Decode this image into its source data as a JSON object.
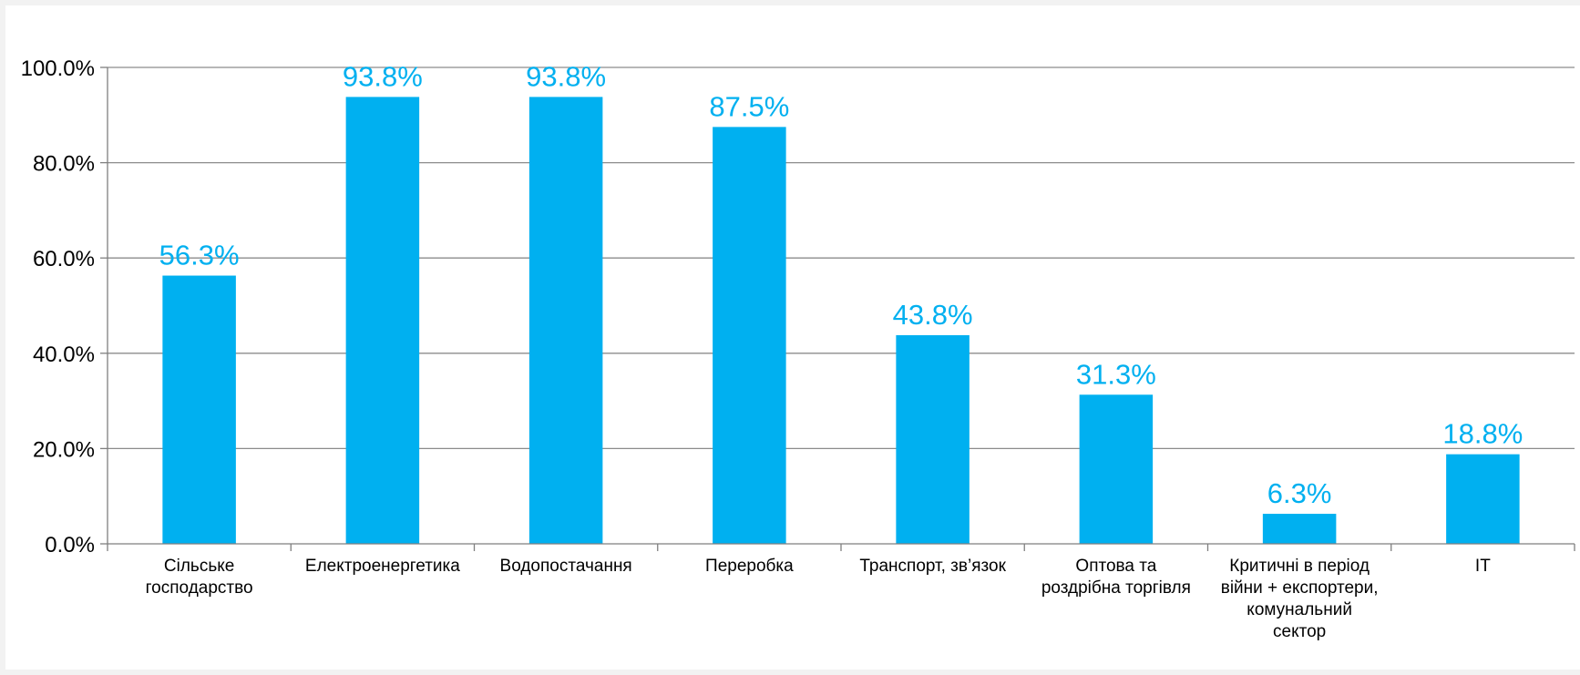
{
  "chart_data": {
    "type": "bar",
    "categories": [
      [
        "Сільське",
        "господарство"
      ],
      [
        "Електроенергетика"
      ],
      [
        "Водопостачання"
      ],
      [
        "Переробка"
      ],
      [
        "Транспорт, зв’язок"
      ],
      [
        "Оптова та",
        "роздрібна торгівля"
      ],
      [
        "Критичні в період",
        "війни + експортери,",
        "комунальний",
        "сектор"
      ],
      [
        "IT"
      ]
    ],
    "values": [
      56.3,
      93.8,
      93.8,
      87.5,
      43.8,
      31.3,
      6.3,
      18.8
    ],
    "data_labels": [
      "56.3%",
      "93.8%",
      "93.8%",
      "87.5%",
      "43.8%",
      "31.3%",
      "6.3%",
      "18.8%"
    ],
    "ylim": [
      0,
      100
    ],
    "yticks": [
      0,
      20,
      40,
      60,
      80,
      100
    ],
    "ytick_labels": [
      "0.0%",
      "20.0%",
      "40.0%",
      "60.0%",
      "80.0%",
      "100.0%"
    ],
    "grid": true,
    "legend": "none",
    "colors": {
      "bar": "#00b0f0",
      "data_label": "#00b0f0",
      "grid": "#8c8c8c",
      "axis": "#7f7f7f"
    }
  }
}
